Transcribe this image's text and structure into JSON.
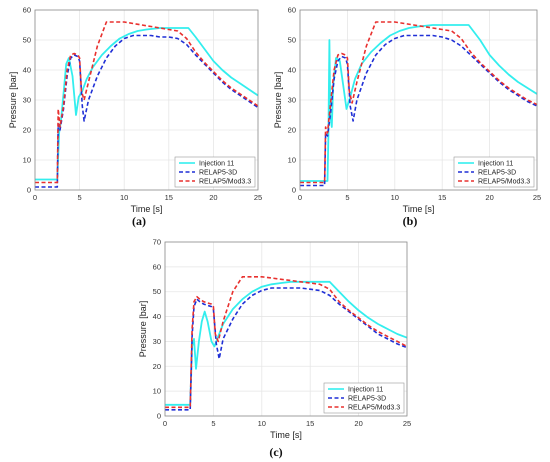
{
  "colors": {
    "series": [
      "#33eeee",
      "#1f2fd6",
      "#e8302e"
    ],
    "grid": "#e6e6e6",
    "axis": "#8c8c8c"
  },
  "chart_data": [
    {
      "panel_label": "(a)",
      "type": "line",
      "xlabel": "Time [s]",
      "ylabel": "Pressure [bar]",
      "xlim": [
        0,
        25
      ],
      "ylim": [
        0,
        60
      ],
      "x_ticks": [
        "0",
        "5",
        "10",
        "15",
        "20",
        "25"
      ],
      "y_ticks": [
        "0",
        "10",
        "20",
        "30",
        "40",
        "50",
        "60"
      ],
      "grid": true,
      "legend_position": "bottom-right",
      "series": [
        {
          "name": "Injection 11",
          "style": "solid",
          "x": [
            0,
            2.5,
            2.7,
            2.9,
            3.2,
            3.5,
            3.8,
            4.2,
            4.6,
            4.9,
            5.3,
            5.8,
            6.5,
            7.5,
            8.5,
            9.5,
            10.5,
            11.5,
            12.5,
            14,
            15.5,
            17.2,
            18,
            19,
            20,
            21,
            22,
            23,
            24,
            25
          ],
          "y": [
            3.5,
            3.5,
            19,
            23,
            32,
            42,
            44,
            38,
            25,
            31,
            33,
            37,
            41,
            45,
            48,
            50.5,
            52,
            53,
            53.5,
            54,
            54,
            54,
            51,
            47,
            43,
            40,
            37.5,
            35.5,
            33.5,
            31.5
          ]
        },
        {
          "name": "RELAP5-3D",
          "style": "dashed",
          "x": [
            0,
            2.5,
            2.6,
            2.8,
            3.2,
            3.6,
            4.0,
            4.4,
            4.8,
            5.0,
            5.3,
            5.5,
            6,
            7,
            8,
            9,
            10,
            11,
            12,
            13,
            14,
            15,
            16,
            17,
            18,
            19,
            20,
            21,
            22,
            23,
            24,
            25
          ],
          "y": [
            1,
            1,
            22,
            20,
            27,
            38,
            44,
            45,
            44.5,
            43,
            28,
            23,
            30,
            38,
            44,
            48,
            50.5,
            51.5,
            51.5,
            51.5,
            51,
            51,
            50.5,
            48.5,
            45,
            42,
            39,
            36,
            33.5,
            31.5,
            29.5,
            27.5
          ]
        },
        {
          "name": "RELAP5/Mod3.3",
          "style": "dashed",
          "x": [
            0,
            2.5,
            2.6,
            2.8,
            3.2,
            3.6,
            4.0,
            4.4,
            4.8,
            5.0,
            5.2,
            5.5,
            6,
            7,
            8,
            9,
            10,
            11,
            12,
            13,
            14,
            15,
            16,
            17,
            18,
            19,
            20,
            21,
            22,
            23,
            24,
            25
          ],
          "y": [
            2.5,
            2.5,
            27,
            21,
            28,
            40,
            45,
            45.5,
            45,
            44,
            33,
            30,
            36,
            48,
            56,
            56,
            56,
            55.5,
            55,
            54.5,
            54,
            53.5,
            53,
            50.5,
            46,
            42.5,
            39.5,
            36.5,
            34,
            32,
            30,
            28
          ]
        }
      ]
    },
    {
      "panel_label": "(b)",
      "type": "line",
      "xlabel": "Time [s]",
      "ylabel": "Pressure [bar]",
      "xlim": [
        0,
        25
      ],
      "ylim": [
        0,
        60
      ],
      "x_ticks": [
        "0",
        "5",
        "10",
        "15",
        "20",
        "25"
      ],
      "y_ticks": [
        "0",
        "10",
        "20",
        "30",
        "40",
        "50",
        "60"
      ],
      "grid": true,
      "legend_position": "bottom-right",
      "series": [
        {
          "name": "Injection 11",
          "style": "solid",
          "x": [
            0,
            2.9,
            3.0,
            3.1,
            3.2,
            3.35,
            3.5,
            3.8,
            4.2,
            4.6,
            4.9,
            5.3,
            5.8,
            6.5,
            7.5,
            8.5,
            9.5,
            10.5,
            11.5,
            12.5,
            14,
            15.5,
            17,
            17.8,
            19,
            20,
            21,
            22,
            23,
            24,
            25
          ],
          "y": [
            3,
            3,
            18,
            50,
            25,
            21,
            35,
            44,
            43,
            34,
            27,
            31,
            37,
            42,
            46,
            49,
            51.5,
            53,
            54,
            54.5,
            55,
            55,
            55,
            55,
            50,
            45,
            41.5,
            38.5,
            36,
            34,
            32
          ]
        },
        {
          "name": "RELAP5-3D",
          "style": "dashed",
          "x": [
            0,
            2.6,
            2.7,
            2.9,
            3.2,
            3.6,
            4.0,
            4.4,
            4.8,
            5.0,
            5.3,
            5.6,
            6,
            7,
            8,
            9,
            10,
            11,
            12,
            13,
            14,
            15,
            16,
            17,
            18,
            19,
            20,
            21,
            22,
            23,
            24,
            25
          ],
          "y": [
            1.5,
            1.5,
            19,
            18,
            25,
            37,
            43,
            44.5,
            44,
            42,
            28,
            23,
            30,
            39,
            45,
            48.5,
            50.5,
            51.5,
            51.5,
            51.5,
            51.5,
            51,
            50,
            48,
            45,
            42,
            39,
            36,
            33.5,
            31.5,
            29.5,
            28
          ]
        },
        {
          "name": "RELAP5/Mod3.3",
          "style": "dashed",
          "x": [
            0,
            2.6,
            2.7,
            2.9,
            3.2,
            3.6,
            4.0,
            4.4,
            4.8,
            5.0,
            5.2,
            5.5,
            6,
            7,
            8,
            9,
            10,
            11,
            12,
            13,
            14,
            15,
            16,
            17,
            18,
            19,
            20,
            21,
            22,
            23,
            24,
            25
          ],
          "y": [
            2.5,
            2.5,
            21,
            19,
            28,
            40,
            45,
            45.5,
            45,
            44,
            33,
            29,
            36,
            48,
            56,
            56,
            56,
            55.5,
            55,
            54.5,
            54,
            53.5,
            53,
            50.5,
            46,
            42.5,
            39.5,
            36.5,
            34,
            32,
            30,
            28.5
          ]
        }
      ]
    },
    {
      "panel_label": "(c)",
      "type": "line",
      "xlabel": "Time [s]",
      "ylabel": "Pressure [bar]",
      "xlim": [
        0,
        25
      ],
      "ylim": [
        0,
        70
      ],
      "x_ticks": [
        "0",
        "5",
        "10",
        "15",
        "20",
        "25"
      ],
      "y_ticks": [
        "0",
        "10",
        "20",
        "30",
        "40",
        "50",
        "60",
        "70"
      ],
      "grid": true,
      "legend_position": "bottom-right",
      "series": [
        {
          "name": "Injection 11",
          "style": "solid",
          "x": [
            0,
            2.6,
            2.8,
            3.0,
            3.2,
            3.5,
            3.8,
            4.1,
            4.4,
            4.8,
            5.1,
            5.5,
            6,
            7,
            8,
            9,
            10,
            11,
            12,
            13,
            14,
            15,
            16,
            17,
            18,
            19,
            20,
            21,
            22,
            23,
            24,
            25
          ],
          "y": [
            4.5,
            4.5,
            28,
            31,
            19,
            30,
            38,
            42,
            38,
            30,
            28,
            32,
            37,
            43,
            47,
            50,
            52,
            53,
            53.5,
            54,
            54,
            54,
            54,
            54,
            50,
            46,
            42.5,
            39.5,
            37,
            35,
            33,
            31.5
          ]
        },
        {
          "name": "RELAP5-3D",
          "style": "dashed",
          "x": [
            0,
            2.6,
            2.8,
            3.0,
            3.3,
            3.6,
            4.0,
            4.4,
            4.8,
            5.0,
            5.3,
            5.6,
            6,
            7,
            8,
            9,
            10,
            11,
            12,
            13,
            14,
            15,
            16,
            17,
            18,
            19,
            20,
            21,
            22,
            23,
            24,
            25
          ],
          "y": [
            2.5,
            2.5,
            32,
            44,
            47,
            46,
            45,
            44.5,
            44,
            43,
            29,
            23,
            31,
            39,
            45,
            48.5,
            50.5,
            51.5,
            51.5,
            51.5,
            51.5,
            51,
            50.5,
            48.5,
            45,
            42,
            39,
            36,
            33,
            31,
            29,
            27.5
          ]
        },
        {
          "name": "RELAP5/Mod3.3",
          "style": "dashed",
          "x": [
            0,
            2.6,
            2.8,
            3.0,
            3.3,
            3.6,
            4.0,
            4.4,
            4.8,
            5.0,
            5.2,
            5.5,
            6,
            7,
            8,
            9,
            10,
            11,
            12,
            13,
            14,
            15,
            16,
            17,
            18,
            19,
            20,
            21,
            22,
            23,
            24,
            25
          ],
          "y": [
            3.5,
            3.5,
            35,
            46,
            48,
            47,
            46,
            45.5,
            45,
            44,
            33,
            30,
            38,
            50,
            56,
            56,
            56,
            55.5,
            55,
            54.5,
            54,
            53.5,
            53,
            51,
            46,
            42.5,
            39.5,
            36.5,
            34,
            32,
            30,
            28
          ]
        }
      ]
    }
  ]
}
